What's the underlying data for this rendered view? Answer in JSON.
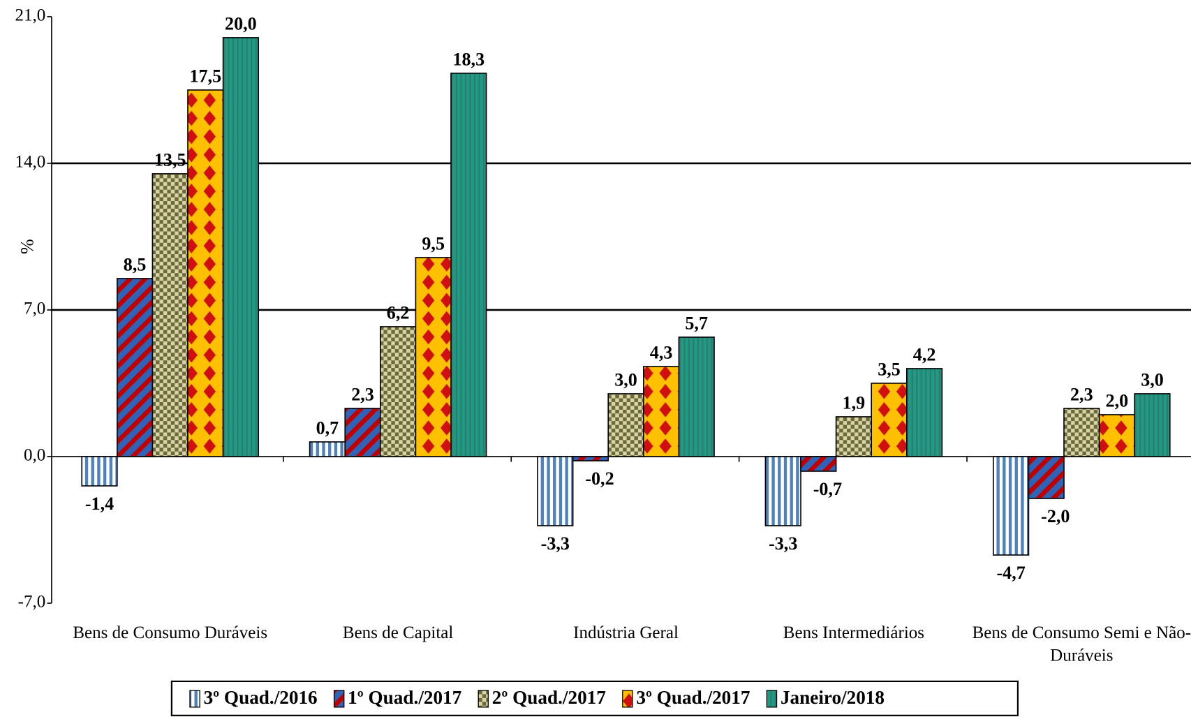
{
  "chart_data": {
    "type": "bar",
    "y_label": "%",
    "categories": [
      "Bens de Consumo Duráveis",
      "Bens de Capital",
      "Indústria Geral",
      "Bens Intermediários",
      "Bens de Consumo Semi e Não-Duráveis"
    ],
    "series": [
      {
        "name": "3º Quad./2016",
        "color": "#4f81bd",
        "values": [
          -1.4,
          0.7,
          -3.3,
          -3.3,
          -4.7
        ],
        "value_labels": [
          "-1,4",
          "0,7",
          "-3,3",
          "-3,3",
          "-4,7"
        ]
      },
      {
        "name": "1º Quad./2017",
        "color": "#c00000",
        "values": [
          8.5,
          2.3,
          -0.2,
          -0.7,
          -2.0
        ],
        "value_labels": [
          "8,5",
          "2,3",
          "-0,2",
          "-0,7",
          "-2,0"
        ]
      },
      {
        "name": "2º Quad./2017",
        "color": "#6b6b3a",
        "values": [
          13.5,
          6.2,
          3.0,
          1.9,
          2.3
        ],
        "value_labels": [
          "13,5",
          "6,2",
          "3,0",
          "1,9",
          "2,3"
        ]
      },
      {
        "name": "3º Quad./2017",
        "color": "#ffc000",
        "values": [
          17.5,
          9.5,
          4.3,
          3.5,
          2.0
        ],
        "value_labels": [
          "17,5",
          "9,5",
          "4,3",
          "3,5",
          "2,0"
        ]
      },
      {
        "name": "Janeiro/2018",
        "color": "#1f9b7f",
        "values": [
          20.0,
          18.3,
          5.7,
          4.2,
          3.0
        ],
        "value_labels": [
          "20,0",
          "18,3",
          "5,7",
          "4,2",
          "3,0"
        ]
      }
    ],
    "ylim": [
      -7,
      21
    ],
    "yticks": [
      {
        "value": -7,
        "label": "-7,0"
      },
      {
        "value": 0,
        "label": "0,0"
      },
      {
        "value": 7,
        "label": "7,0"
      },
      {
        "value": 14,
        "label": "14,0"
      },
      {
        "value": 21,
        "label": "21,0"
      }
    ],
    "grid": true,
    "legend": "bottom"
  }
}
